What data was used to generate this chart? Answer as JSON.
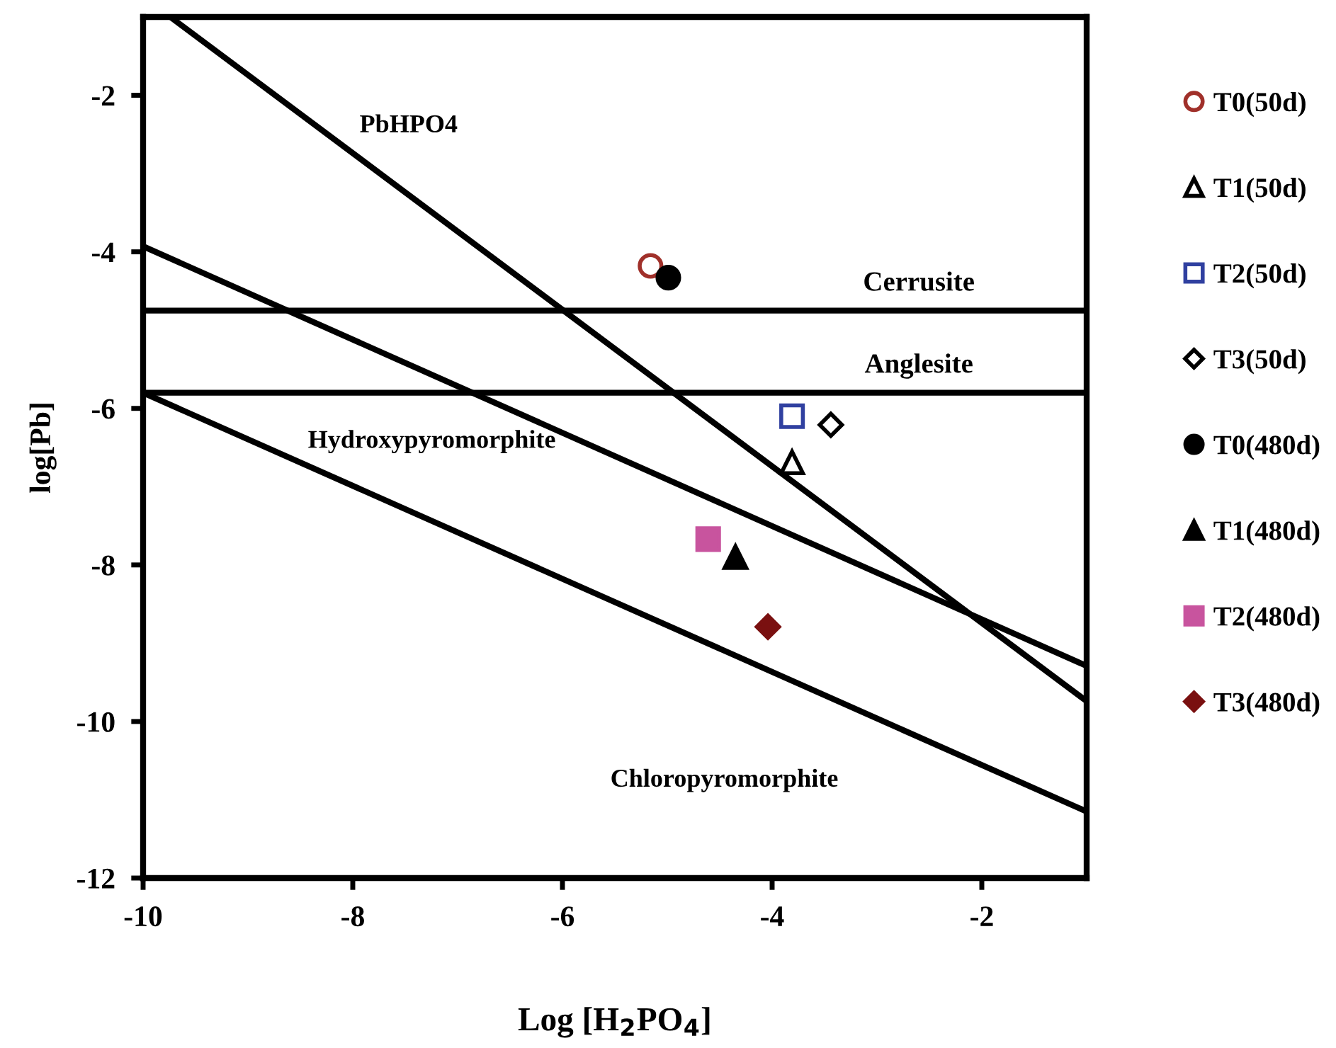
{
  "chart_data": {
    "type": "scatter",
    "xlabel": "Log [H$_{2}$PO$_{4}$]",
    "ylabel": "log[Pb]",
    "xlim": [
      -10,
      -1
    ],
    "ylim": [
      -12,
      -1
    ],
    "xticks": [
      -10,
      -8,
      -6,
      -4,
      -2
    ],
    "yticks": [
      -12,
      -10,
      -8,
      -6,
      -4,
      -2
    ],
    "grid": false,
    "legend": "right",
    "series": [
      {
        "type": "line",
        "name": "PbHPO4",
        "color": "#000000",
        "x": [
          -9.74,
          -1
        ],
        "values": [
          -1,
          -9.74
        ]
      },
      {
        "type": "line",
        "name": "Hydroxypyromorphite",
        "color": "#000000",
        "x": [
          -10,
          -1
        ],
        "values": [
          -3.93,
          -9.29
        ]
      },
      {
        "type": "line",
        "name": "Chloropyromorphite",
        "color": "#000000",
        "x": [
          -10,
          -1
        ],
        "values": [
          -5.8,
          -11.15
        ]
      },
      {
        "name": "T0(50d)",
        "marker": "circle",
        "color": "#a0302a",
        "x": [
          -5.16
        ],
        "values": [
          -4.18
        ]
      },
      {
        "name": "T1(50d)",
        "marker": "triangle",
        "color": "#000000",
        "x": [
          -3.81
        ],
        "values": [
          -6.69
        ]
      },
      {
        "name": "T2(50d)",
        "marker": "square",
        "color": "#3040a0",
        "x": [
          -3.81
        ],
        "values": [
          -6.1
        ]
      },
      {
        "name": "T3(50d)",
        "marker": "diamond",
        "color": "#000000",
        "x": [
          -3.44
        ],
        "values": [
          -6.21
        ]
      },
      {
        "name": "T0(480d)",
        "marker": "circle",
        "color": "#000000",
        "x": [
          -4.99
        ],
        "values": [
          -4.33
        ]
      },
      {
        "name": "T1(480d)",
        "marker": "triangle",
        "color": "#000000",
        "x": [
          -4.35
        ],
        "values": [
          -7.9
        ]
      },
      {
        "name": "T2(480d)",
        "marker": "square",
        "color": "#c8549e",
        "x": [
          -4.61
        ],
        "values": [
          -7.67
        ]
      },
      {
        "name": "T3(480d)",
        "marker": "diamond",
        "color": "#7a1010",
        "x": [
          -4.04
        ],
        "values": [
          -8.79
        ]
      }
    ],
    "ref_lines": [
      {
        "axis": "y",
        "value": -4.75,
        "label": "Cerrusite",
        "color": "#000000"
      },
      {
        "axis": "y",
        "value": -5.8,
        "label": "Anglesite",
        "color": "#000000"
      }
    ]
  }
}
